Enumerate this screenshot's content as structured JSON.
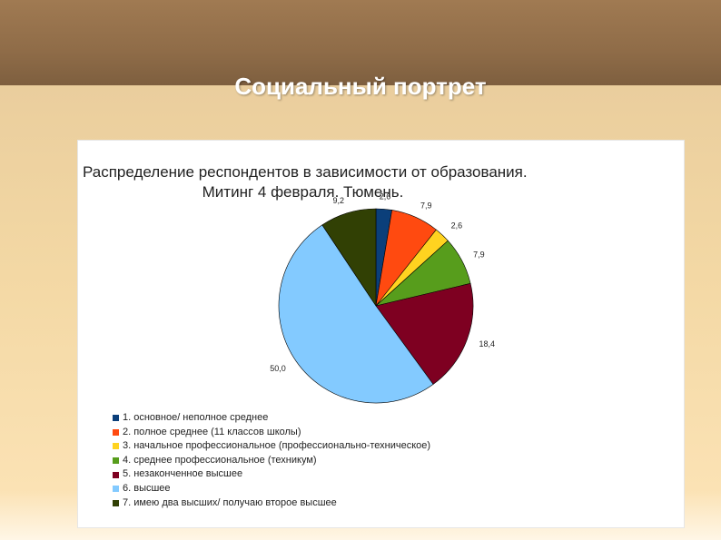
{
  "slide": {
    "title": "Социальный портрет"
  },
  "chart_data": {
    "type": "pie",
    "title_line1": "Распределение респондентов в зависимости от образования.",
    "title_line2": "Митинг 4 февраля. Тюмень.",
    "categories": [
      "1. основное/ неполное среднее",
      "2. полное среднее (11 классов школы)",
      "3. начальное профессиональное (профессионально-техническое)",
      "4. среднее профессиональное (техникум)",
      "5. незаконченное высшее",
      "6. высшее",
      "7. имею два высших/ получаю второе высшее"
    ],
    "values": [
      2.6,
      7.9,
      2.6,
      7.9,
      18.4,
      50.0,
      9.2
    ],
    "value_labels": [
      "2,6",
      "7,9",
      "2,6",
      "7,9",
      "18,4",
      "50,0",
      "9,2"
    ],
    "colors": [
      "#0b3f7a",
      "#ff4a10",
      "#ffd320",
      "#579d1c",
      "#7e0021",
      "#83caff",
      "#314004"
    ],
    "legend": "bottom-left"
  }
}
